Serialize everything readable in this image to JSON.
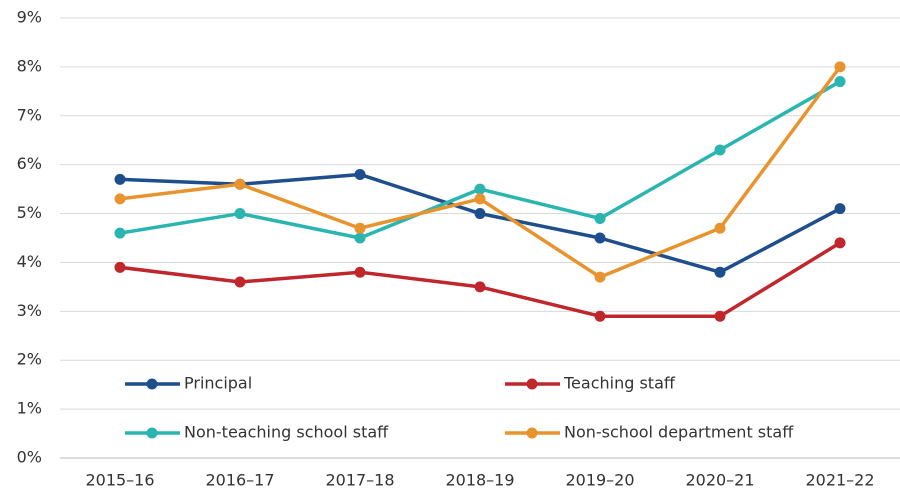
{
  "chart_data": {
    "type": "line",
    "categories": [
      "2015–16",
      "2016–17",
      "2017–18",
      "2018–19",
      "2019–20",
      "2020–21",
      "2021–22"
    ],
    "series": [
      {
        "name": "Principal",
        "color": "#1f4e8c",
        "values": [
          5.7,
          5.6,
          5.8,
          5.0,
          4.5,
          3.8,
          5.1
        ]
      },
      {
        "name": "Teaching staff",
        "color": "#c0272d",
        "values": [
          3.9,
          3.6,
          3.8,
          3.5,
          2.9,
          2.9,
          4.4
        ]
      },
      {
        "name": "Non-teaching school staff",
        "color": "#2ab5b0",
        "values": [
          4.6,
          5.0,
          4.5,
          5.5,
          4.9,
          6.3,
          7.7
        ]
      },
      {
        "name": "Non-school department staff",
        "color": "#e8942e",
        "values": [
          5.3,
          5.6,
          4.7,
          5.3,
          3.7,
          4.7,
          8.0
        ]
      }
    ],
    "ylim": [
      0,
      9
    ],
    "yticks": [
      {
        "value": 0,
        "label": "0%"
      },
      {
        "value": 1,
        "label": "1%"
      },
      {
        "value": 2,
        "label": "2%"
      },
      {
        "value": 3,
        "label": "3%"
      },
      {
        "value": 4,
        "label": "4%"
      },
      {
        "value": 5,
        "label": "5%"
      },
      {
        "value": 6,
        "label": "6%"
      },
      {
        "value": 7,
        "label": "7%"
      },
      {
        "value": 8,
        "label": "8%"
      },
      {
        "value": 9,
        "label": "9%"
      }
    ],
    "grid": true
  }
}
